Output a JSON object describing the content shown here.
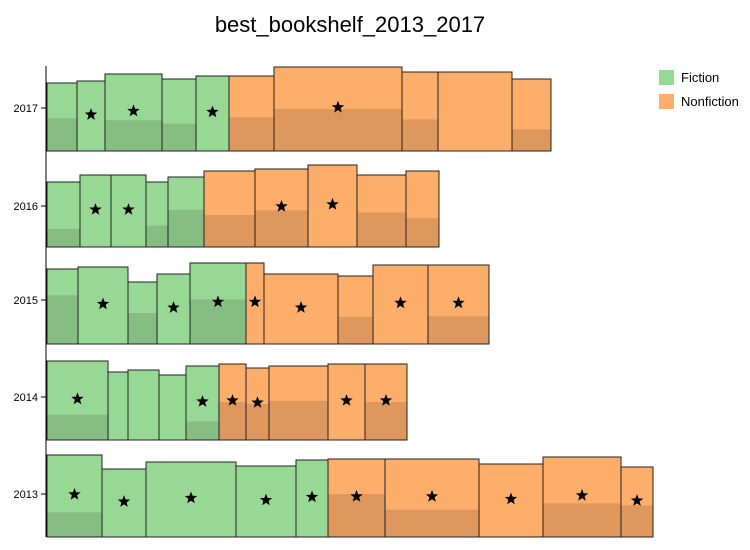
{
  "chart_data": {
    "type": "bar",
    "title": "best_bookshelf_2013_2017",
    "categories": [
      "2013",
      "2014",
      "2015",
      "2016",
      "2017"
    ],
    "legend": {
      "placement": "top-right",
      "entries": [
        {
          "name": "Fiction",
          "color": "#98d895"
        },
        {
          "name": "Nonfiction",
          "color": "#fdae6b"
        }
      ]
    },
    "colors": {
      "Fiction": "#98d895",
      "Nonfiction": "#fdae6b",
      "outline": "#222222"
    },
    "grid": false,
    "books": {
      "2013": [
        {
          "genre": "Fiction",
          "width": 55,
          "height": 82,
          "shade": 0.3,
          "starred": true
        },
        {
          "genre": "Fiction",
          "width": 44,
          "height": 68,
          "shade": 0.0,
          "starred": true
        },
        {
          "genre": "Fiction",
          "width": 90,
          "height": 75,
          "shade": 0.0,
          "starred": true
        },
        {
          "genre": "Fiction",
          "width": 60,
          "height": 71,
          "shade": 0.0,
          "starred": true
        },
        {
          "genre": "Fiction",
          "width": 32,
          "height": 77,
          "shade": 0.0,
          "starred": true
        },
        {
          "genre": "Nonfiction",
          "width": 57,
          "height": 78,
          "shade": 0.55,
          "starred": true
        },
        {
          "genre": "Nonfiction",
          "width": 94,
          "height": 78,
          "shade": 0.35,
          "starred": true
        },
        {
          "genre": "Nonfiction",
          "width": 64,
          "height": 73,
          "shade": 0.0,
          "starred": true
        },
        {
          "genre": "Nonfiction",
          "width": 78,
          "height": 80,
          "shade": 0.42,
          "starred": true
        },
        {
          "genre": "Nonfiction",
          "width": 32,
          "height": 70,
          "shade": 0.45,
          "starred": true
        }
      ],
      "2014": [
        {
          "genre": "Fiction",
          "width": 61,
          "height": 79,
          "shade": 0.32,
          "starred": true
        },
        {
          "genre": "Fiction",
          "width": 20,
          "height": 68,
          "shade": 0.0,
          "starred": false
        },
        {
          "genre": "Fiction",
          "width": 31,
          "height": 70,
          "shade": 0.0,
          "starred": false
        },
        {
          "genre": "Fiction",
          "width": 27,
          "height": 65,
          "shade": 0.0,
          "starred": false
        },
        {
          "genre": "Fiction",
          "width": 33,
          "height": 74,
          "shade": 0.25,
          "starred": true
        },
        {
          "genre": "Nonfiction",
          "width": 27,
          "height": 76,
          "shade": 0.5,
          "starred": true
        },
        {
          "genre": "Nonfiction",
          "width": 23,
          "height": 72,
          "shade": 0.5,
          "starred": true
        },
        {
          "genre": "Nonfiction",
          "width": 59,
          "height": 74,
          "shade": 0.53,
          "starred": false
        },
        {
          "genre": "Nonfiction",
          "width": 37,
          "height": 76,
          "shade": 0.0,
          "starred": true
        },
        {
          "genre": "Nonfiction",
          "width": 42,
          "height": 76,
          "shade": 0.5,
          "starred": true
        }
      ],
      "2015": [
        {
          "genre": "Fiction",
          "width": 31,
          "height": 75,
          "shade": 0.65,
          "starred": false
        },
        {
          "genre": "Fiction",
          "width": 50,
          "height": 77,
          "shade": 0.0,
          "starred": true
        },
        {
          "genre": "Fiction",
          "width": 29,
          "height": 62,
          "shade": 0.5,
          "starred": false
        },
        {
          "genre": "Fiction",
          "width": 33,
          "height": 70,
          "shade": 0.0,
          "starred": true
        },
        {
          "genre": "Fiction",
          "width": 56,
          "height": 81,
          "shade": 0.55,
          "starred": true
        },
        {
          "genre": "Nonfiction",
          "width": 18,
          "height": 81,
          "shade": 0.0,
          "starred": true
        },
        {
          "genre": "Nonfiction",
          "width": 74,
          "height": 70,
          "shade": 0.0,
          "starred": true
        },
        {
          "genre": "Nonfiction",
          "width": 35,
          "height": 68,
          "shade": 0.4,
          "starred": false
        },
        {
          "genre": "Nonfiction",
          "width": 55,
          "height": 79,
          "shade": 0.0,
          "starred": true
        },
        {
          "genre": "Nonfiction",
          "width": 61,
          "height": 79,
          "shade": 0.35,
          "starred": true
        }
      ],
      "2016": [
        {
          "genre": "Fiction",
          "width": 33,
          "height": 65,
          "shade": 0.28,
          "starred": false
        },
        {
          "genre": "Fiction",
          "width": 31,
          "height": 72,
          "shade": 0.0,
          "starred": true
        },
        {
          "genre": "Fiction",
          "width": 35,
          "height": 72,
          "shade": 0.0,
          "starred": true
        },
        {
          "genre": "Fiction",
          "width": 22,
          "height": 65,
          "shade": 0.33,
          "starred": false
        },
        {
          "genre": "Fiction",
          "width": 36,
          "height": 70,
          "shade": 0.53,
          "starred": false
        },
        {
          "genre": "Nonfiction",
          "width": 51,
          "height": 76,
          "shade": 0.42,
          "starred": false
        },
        {
          "genre": "Nonfiction",
          "width": 53,
          "height": 78,
          "shade": 0.47,
          "starred": true
        },
        {
          "genre": "Nonfiction",
          "width": 49,
          "height": 82,
          "shade": 0.0,
          "starred": true
        },
        {
          "genre": "Nonfiction",
          "width": 49,
          "height": 72,
          "shade": 0.48,
          "starred": false
        },
        {
          "genre": "Nonfiction",
          "width": 33,
          "height": 76,
          "shade": 0.38,
          "starred": false
        }
      ],
      "2017": [
        {
          "genre": "Fiction",
          "width": 30,
          "height": 68,
          "shade": 0.48,
          "starred": false
        },
        {
          "genre": "Fiction",
          "width": 28,
          "height": 70,
          "shade": 0.0,
          "starred": true
        },
        {
          "genre": "Fiction",
          "width": 57,
          "height": 77,
          "shade": 0.4,
          "starred": true
        },
        {
          "genre": "Fiction",
          "width": 34,
          "height": 72,
          "shade": 0.38,
          "starred": false
        },
        {
          "genre": "Fiction",
          "width": 33,
          "height": 75,
          "shade": 0.0,
          "starred": true
        },
        {
          "genre": "Nonfiction",
          "width": 45,
          "height": 75,
          "shade": 0.45,
          "starred": false
        },
        {
          "genre": "Nonfiction",
          "width": 128,
          "height": 84,
          "shade": 0.5,
          "starred": true
        },
        {
          "genre": "Nonfiction",
          "width": 36,
          "height": 79,
          "shade": 0.4,
          "starred": false
        },
        {
          "genre": "Nonfiction",
          "width": 74,
          "height": 79,
          "shade": 0.0,
          "starred": false
        },
        {
          "genre": "Nonfiction",
          "width": 39,
          "height": 72,
          "shade": 0.3,
          "starred": false
        }
      ]
    }
  }
}
